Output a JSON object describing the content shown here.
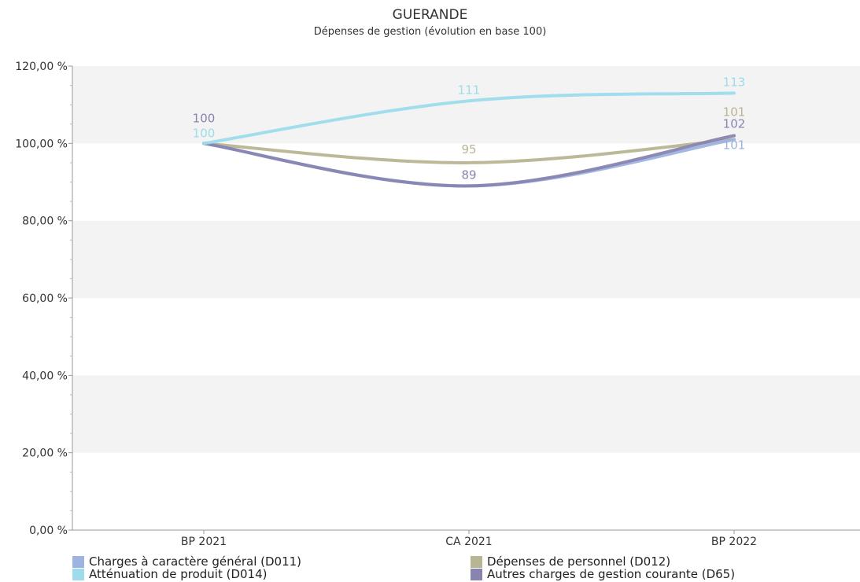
{
  "title": "GUERANDE",
  "subtitle": "Dépenses de gestion (évolution en base 100)",
  "chart_data": {
    "type": "line",
    "title": "GUERANDE",
    "subtitle": "Dépenses de gestion (évolution en base 100)",
    "categories": [
      "BP 2021",
      "CA 2021",
      "BP 2022"
    ],
    "ylim": [
      0,
      120
    ],
    "yticks": [
      "0,00 %",
      "20,00 %",
      "40,00 %",
      "60,00 %",
      "80,00 %",
      "100,00 %",
      "120,00 %"
    ],
    "grid": "alternating horizontal bands",
    "legend_position": "bottom",
    "series": [
      {
        "name": "Charges à caractère général (D011)",
        "values": [
          100,
          89,
          101
        ],
        "labels": [
          "",
          "",
          "101"
        ],
        "color": "#9db3e0"
      },
      {
        "name": "Dépenses de personnel (D012)",
        "values": [
          100,
          95,
          101
        ],
        "labels": [
          "",
          "95",
          "101"
        ],
        "color": "#b8b594"
      },
      {
        "name": "Atténuation de produit (D014)",
        "values": [
          100,
          111,
          113
        ],
        "labels": [
          "100",
          "111",
          "113"
        ],
        "color": "#9cdcec"
      },
      {
        "name": "Autres charges de gestion courante (D65)",
        "values": [
          100,
          89,
          102
        ],
        "labels": [
          "100",
          "89",
          "102"
        ],
        "color": "#8884b0"
      }
    ]
  }
}
